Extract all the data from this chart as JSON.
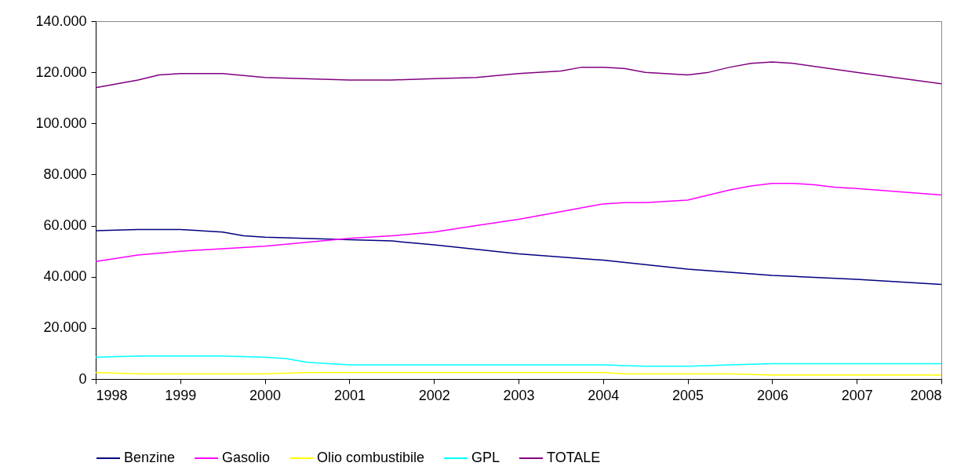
{
  "chart_data": {
    "type": "line",
    "xlim": [
      1998,
      2008
    ],
    "xticks": [
      1998,
      1999,
      2000,
      2001,
      2002,
      2003,
      2004,
      2005,
      2006,
      2007,
      2008
    ],
    "ylim": [
      0,
      140000
    ],
    "yticks": [
      {
        "value": 0,
        "label": "0"
      },
      {
        "value": 20000,
        "label": "20.000"
      },
      {
        "value": 40000,
        "label": "40.000"
      },
      {
        "value": 60000,
        "label": "60.000"
      },
      {
        "value": 80000,
        "label": "80.000"
      },
      {
        "value": 100000,
        "label": "100.000"
      },
      {
        "value": 120000,
        "label": "120.000"
      },
      {
        "value": 140000,
        "label": "140.000"
      }
    ],
    "legend": "bottom",
    "series": [
      {
        "name": "Benzine",
        "color": "#000080",
        "x": [
          1998,
          1998.5,
          1999,
          1999.5,
          1999.75,
          2000,
          2001,
          2001.5,
          2002,
          2003,
          2004,
          2005,
          2006,
          2007,
          2008
        ],
        "values": [
          58000,
          58500,
          58500,
          57500,
          56000,
          55500,
          54500,
          54000,
          52500,
          49000,
          46500,
          43000,
          40500,
          39000,
          37000
        ]
      },
      {
        "name": "Gasolio",
        "color": "#ff00ff",
        "x": [
          1998,
          1998.5,
          1999,
          1999.5,
          2000,
          2000.5,
          2001,
          2001.5,
          2002,
          2002.5,
          2003,
          2003.5,
          2003.75,
          2004,
          2004.25,
          2004.5,
          2005,
          2005.25,
          2005.5,
          2005.75,
          2006,
          2006.25,
          2006.5,
          2006.75,
          2007,
          2008
        ],
        "values": [
          46000,
          48500,
          50000,
          51000,
          52000,
          53500,
          55000,
          56000,
          57500,
          60000,
          62500,
          65500,
          67000,
          68500,
          69000,
          69000,
          70000,
          72000,
          74000,
          75500,
          76500,
          76500,
          76000,
          75000,
          74500,
          72000
        ]
      },
      {
        "name": "Olio combustibile",
        "color": "#ffff00",
        "x": [
          1998,
          1998.5,
          1999,
          2000,
          2000.5,
          2004,
          2004.25,
          2005.5,
          2006,
          2008
        ],
        "values": [
          2500,
          2000,
          2000,
          2000,
          2500,
          2500,
          2000,
          2000,
          1500,
          1500
        ]
      },
      {
        "name": "GPL",
        "color": "#00ffff",
        "x": [
          1998,
          1998.5,
          1999,
          1999.5,
          2000,
          2000.25,
          2000.5,
          2001,
          2004,
          2004.5,
          2005,
          2005.5,
          2006,
          2008
        ],
        "values": [
          8500,
          9000,
          9000,
          9000,
          8500,
          8000,
          6500,
          5500,
          5500,
          5000,
          5000,
          5500,
          6000,
          6000
        ]
      },
      {
        "name": "TOTALE",
        "color": "#800080",
        "x": [
          1998,
          1998.5,
          1998.75,
          1999,
          1999.5,
          2000,
          2001,
          2001.5,
          2002,
          2002.5,
          2003,
          2003.5,
          2003.75,
          2004,
          2004.25,
          2004.5,
          2005,
          2005.25,
          2005.5,
          2005.75,
          2006,
          2006.25,
          2007,
          2008
        ],
        "values": [
          114000,
          117000,
          119000,
          119500,
          119500,
          118000,
          117000,
          117000,
          117500,
          118000,
          119500,
          120500,
          122000,
          122000,
          121500,
          120000,
          119000,
          120000,
          122000,
          123500,
          124000,
          123500,
          120000,
          115500
        ]
      }
    ]
  }
}
